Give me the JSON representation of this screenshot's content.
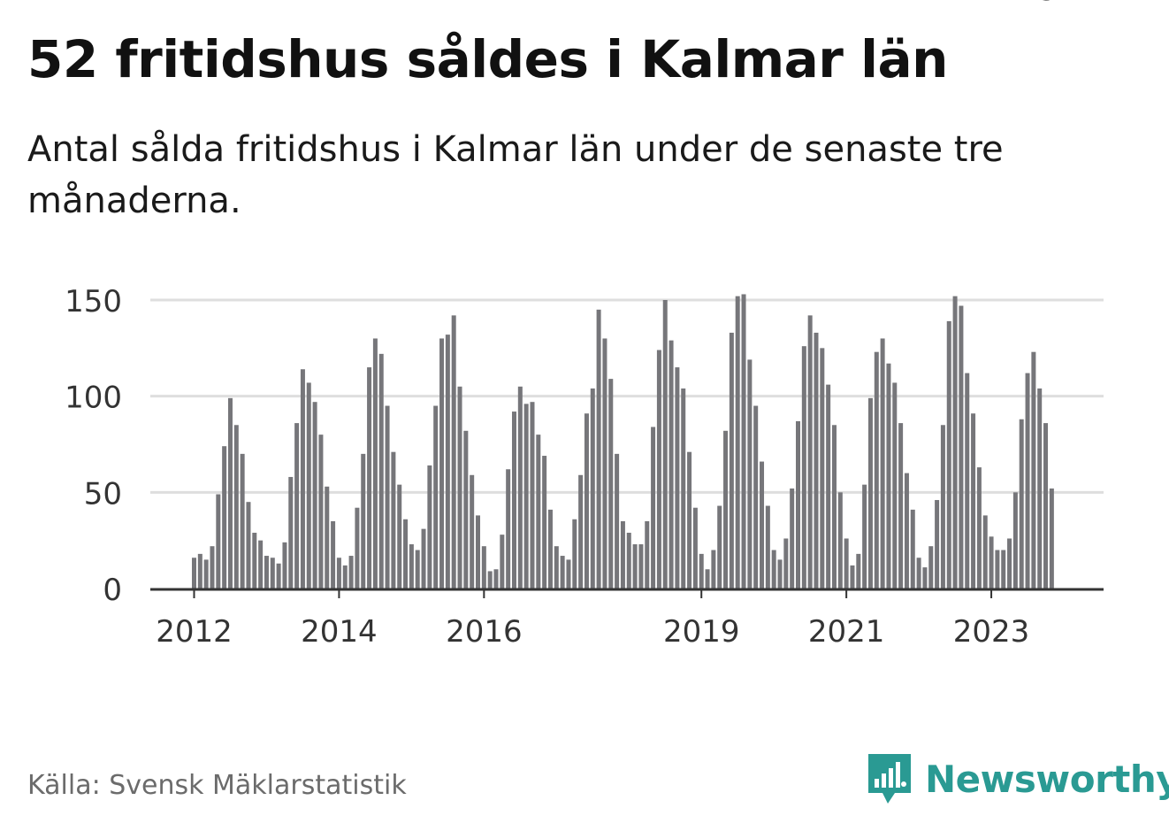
{
  "header": {
    "title": "52 fritidshus såldes i Kalmar län",
    "subtitle": "Antal sålda fritidshus i Kalmar län under de senaste tre månaderna."
  },
  "footer": {
    "source": "Källa: Svensk Mäklarstatistik",
    "brand": "Newsworthy"
  },
  "colors": {
    "bar": "#76767a",
    "highlight": "#19a4a0",
    "grid": "#dedede",
    "axis": "#333333",
    "brand": "#2a9a93"
  },
  "chart_data": {
    "type": "bar",
    "title": "52 fritidshus såldes i Kalmar län",
    "ylabel": "",
    "xlabel": "",
    "ylim": [
      0,
      150
    ],
    "yticks": [
      0,
      50,
      100,
      150
    ],
    "xtick_labels": [
      {
        "label": "2012",
        "index": 0
      },
      {
        "label": "2014",
        "index": 24
      },
      {
        "label": "2016",
        "index": 48
      },
      {
        "label": "2019",
        "index": 84
      },
      {
        "label": "2021",
        "index": 108
      },
      {
        "label": "2023",
        "index": 132
      }
    ],
    "callout": {
      "index": 143,
      "label": "52"
    },
    "values": [
      16,
      18,
      15,
      22,
      49,
      74,
      99,
      85,
      70,
      45,
      29,
      25,
      17,
      16,
      13,
      24,
      58,
      86,
      114,
      107,
      97,
      80,
      53,
      35,
      16,
      12,
      17,
      42,
      70,
      115,
      130,
      122,
      95,
      71,
      54,
      36,
      23,
      20,
      31,
      64,
      95,
      130,
      132,
      142,
      105,
      82,
      59,
      38,
      22,
      9,
      10,
      28,
      62,
      92,
      105,
      96,
      97,
      80,
      69,
      41,
      22,
      17,
      15,
      36,
      59,
      91,
      104,
      145,
      130,
      109,
      70,
      35,
      29,
      23,
      23,
      35,
      84,
      124,
      150,
      129,
      115,
      104,
      71,
      42,
      18,
      10,
      20,
      43,
      82,
      133,
      152,
      153,
      119,
      95,
      66,
      43,
      20,
      15,
      26,
      52,
      87,
      126,
      142,
      133,
      125,
      106,
      85,
      50,
      26,
      12,
      18,
      54,
      99,
      123,
      130,
      117,
      107,
      86,
      60,
      41,
      16,
      11,
      22,
      46,
      85,
      139,
      152,
      147,
      112,
      91,
      63,
      38,
      27,
      20,
      20,
      26,
      50,
      88,
      112,
      123,
      104,
      86,
      52
    ]
  }
}
